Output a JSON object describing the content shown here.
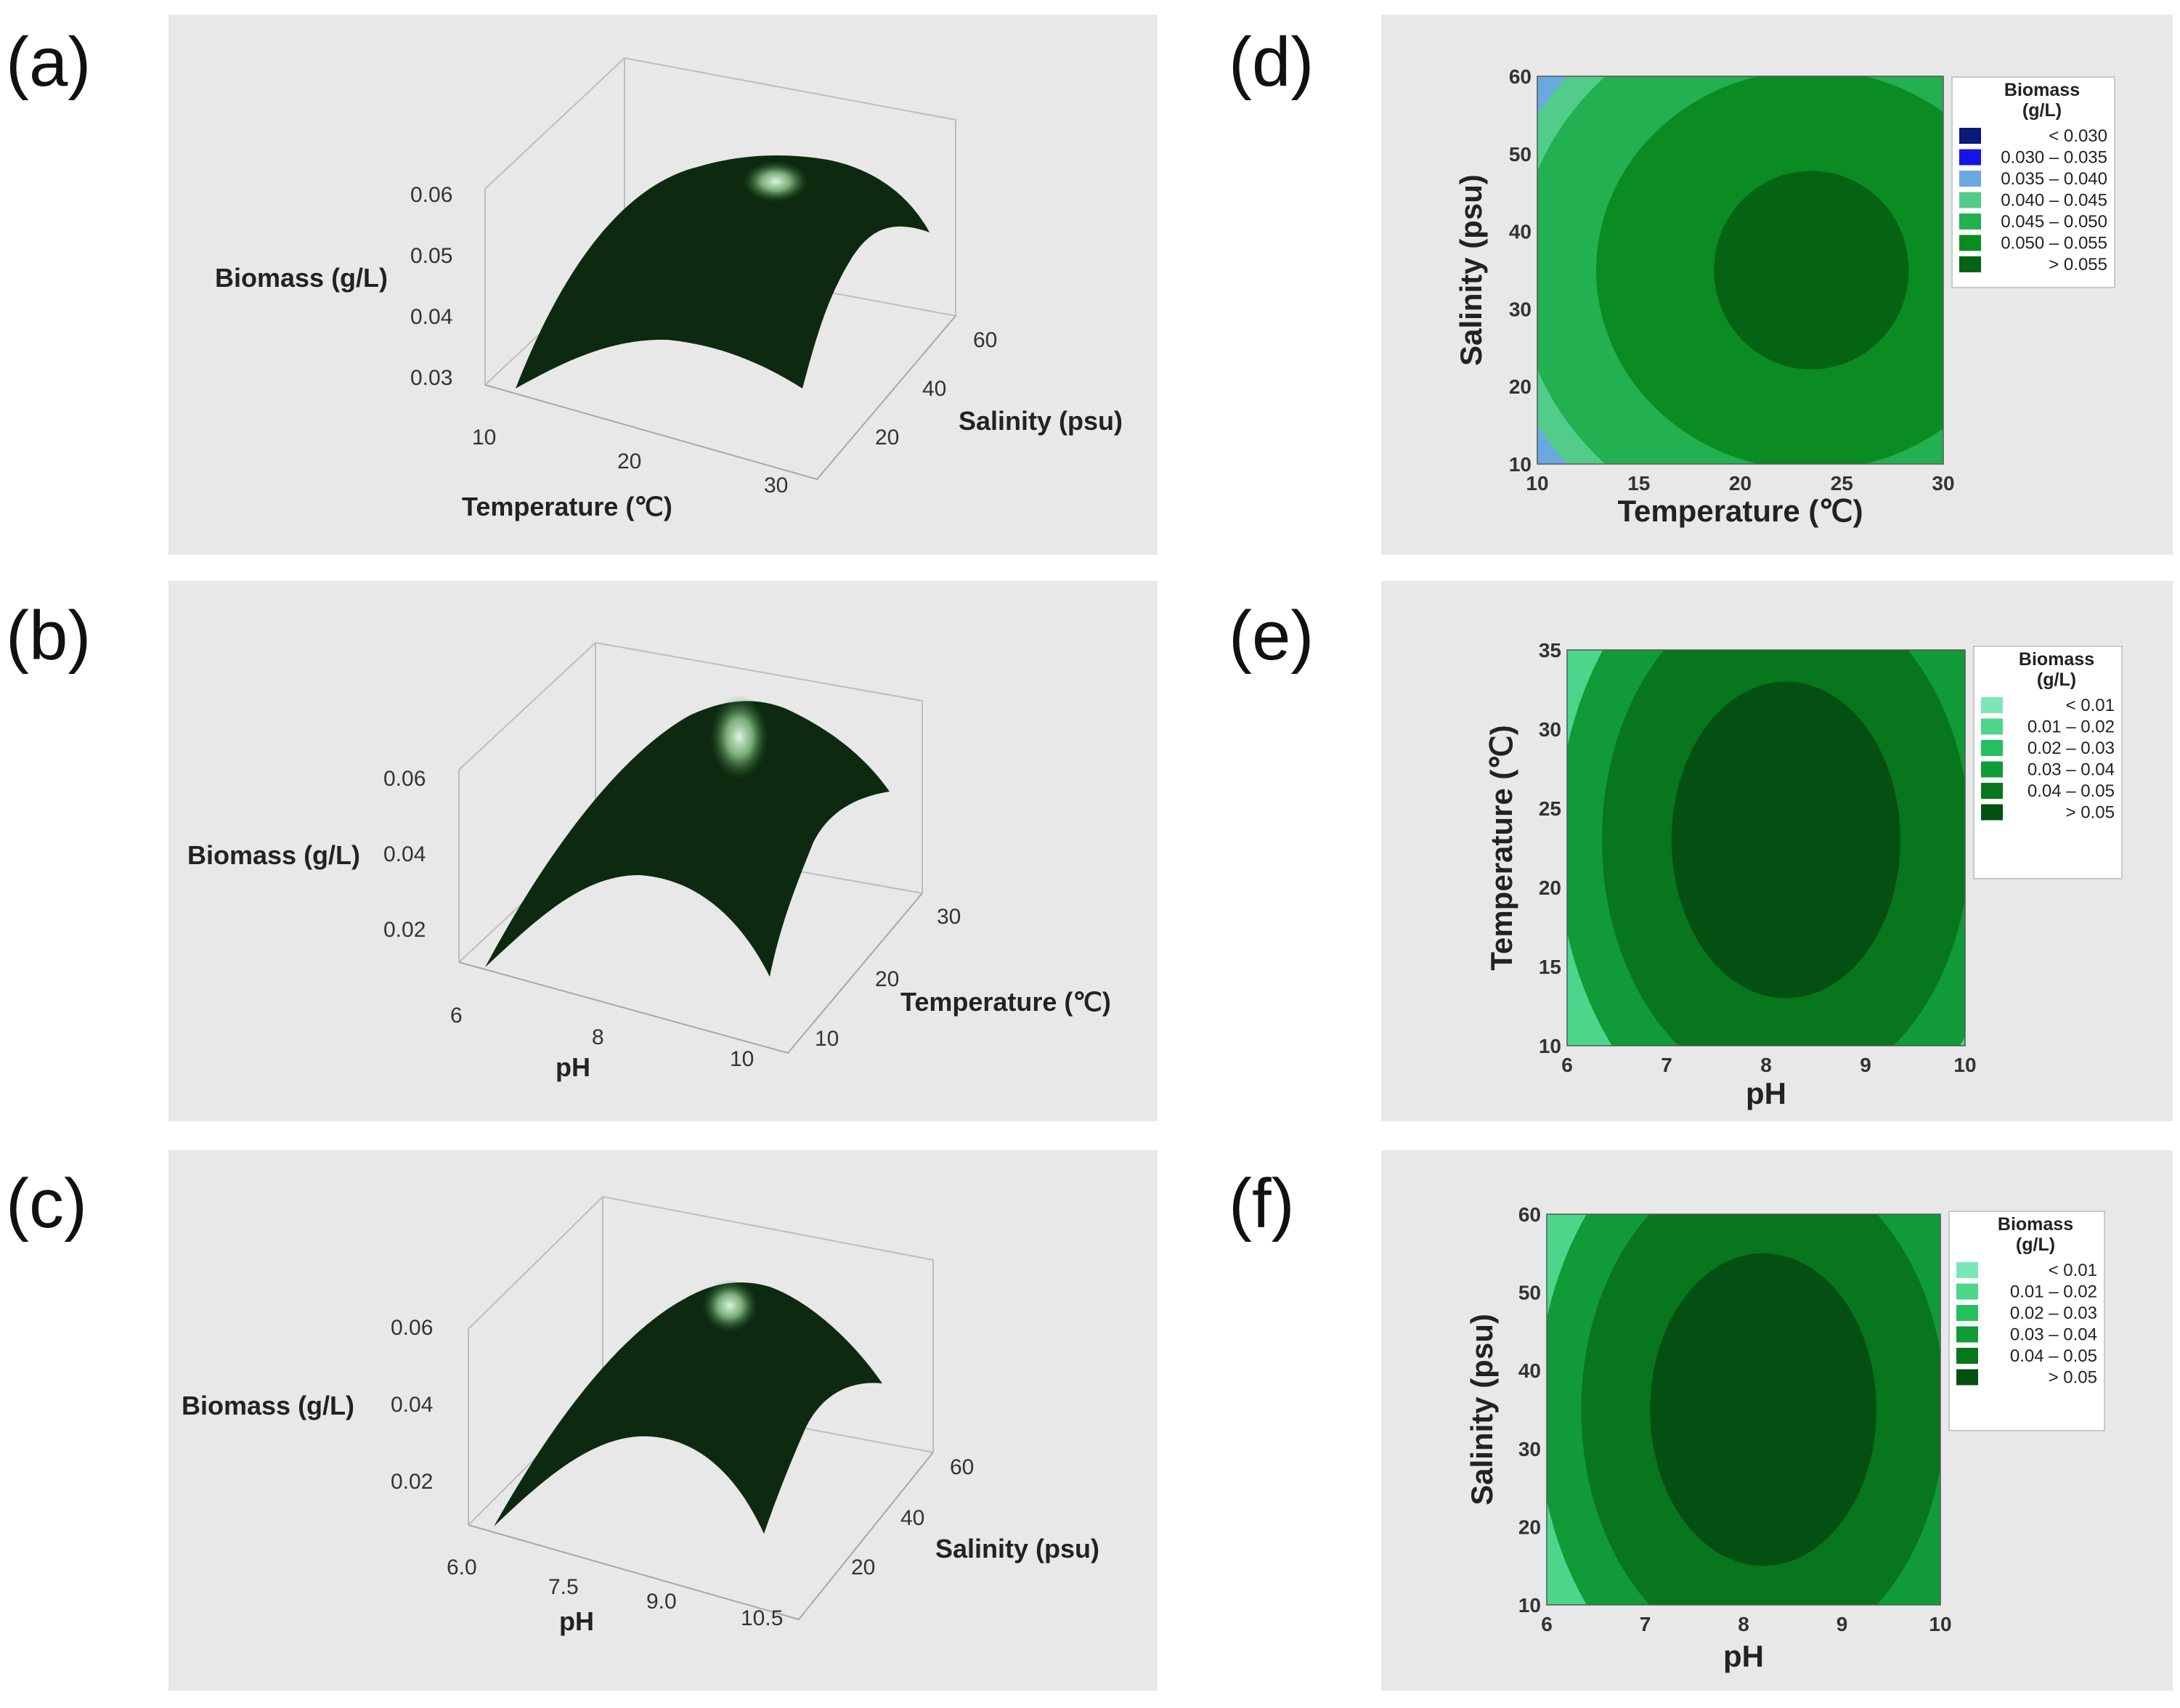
{
  "colors": {
    "panel_bg": "#e8e8e8",
    "surface_dark": "#0d2a10",
    "surface_highlight": "#dff5df"
  },
  "chart_data": [
    {
      "id": "a",
      "type": "surface3d",
      "panel_label": "(a)",
      "zlabel": "Biomass (g/L)",
      "xlabel": "Temperature (℃)",
      "ylabel": "Salinity (psu)",
      "x_ticks": [
        "10",
        "20",
        "30"
      ],
      "y_ticks": [
        "20",
        "40",
        "60"
      ],
      "z_ticks": [
        "0.03",
        "0.04",
        "0.05",
        "0.06"
      ],
      "xlim": [
        10,
        30
      ],
      "ylim": [
        10,
        60
      ],
      "zlim": [
        0.028,
        0.062
      ],
      "optimum": {
        "x": 23,
        "y": 35,
        "z": 0.057
      },
      "corner_min_z": 0.028
    },
    {
      "id": "b",
      "type": "surface3d",
      "panel_label": "(b)",
      "zlabel": "Biomass (g/L)",
      "xlabel": "pH",
      "ylabel": "Temperature (℃)",
      "x_ticks": [
        "6",
        "8",
        "10"
      ],
      "y_ticks": [
        "10",
        "20",
        "30"
      ],
      "z_ticks": [
        "0.02",
        "0.04",
        "0.06"
      ],
      "xlim": [
        6,
        10
      ],
      "ylim": [
        10,
        35
      ],
      "zlim": [
        0.01,
        0.065
      ],
      "optimum": {
        "x": 8.2,
        "y": 23,
        "z": 0.058
      },
      "corner_min_z": 0.01
    },
    {
      "id": "c",
      "type": "surface3d",
      "panel_label": "(c)",
      "zlabel": "Biomass (g/L)",
      "xlabel": "pH",
      "ylabel": "Salinity (psu)",
      "x_ticks": [
        "6.0",
        "7.5",
        "9.0",
        "10.5"
      ],
      "y_ticks": [
        "20",
        "40",
        "60"
      ],
      "z_ticks": [
        "0.02",
        "0.04",
        "0.06"
      ],
      "xlim": [
        6,
        10.5
      ],
      "ylim": [
        10,
        60
      ],
      "zlim": [
        0.01,
        0.065
      ],
      "optimum": {
        "x": 8.2,
        "y": 35,
        "z": 0.058
      },
      "corner_min_z": 0.01
    },
    {
      "id": "d",
      "type": "contour",
      "panel_label": "(d)",
      "xlabel": "Temperature (℃)",
      "ylabel": "Salinity (psu)",
      "xlim": [
        10,
        30
      ],
      "ylim": [
        10,
        60
      ],
      "x_ticks": [
        "10",
        "15",
        "20",
        "25",
        "30"
      ],
      "y_ticks": [
        "10",
        "20",
        "30",
        "40",
        "50",
        "60"
      ],
      "center": {
        "x": 23.5,
        "y": 35
      },
      "contour_radii": {
        "x": [
          4.8,
          10.6,
          14.5,
          15.8,
          21
        ],
        "y": [
          12.8,
          25.8,
          35,
          38.5,
          51
        ]
      },
      "legend": {
        "title_line1": "Biomass",
        "title_line2": "(g/L)",
        "labels": [
          "< 0.030",
          "0.030  –  0.035",
          "0.035  –  0.040",
          "0.040  –  0.045",
          "0.045  –  0.050",
          "0.050  –  0.055",
          "> 0.055"
        ],
        "colors": [
          "#0a1a7a",
          "#1414e6",
          "#6aa8e0",
          "#52cc8a",
          "#22b050",
          "#0a8c22",
          "#056414"
        ]
      }
    },
    {
      "id": "e",
      "type": "contour",
      "panel_label": "(e)",
      "xlabel": "pH",
      "ylabel": "Temperature (℃)",
      "xlim": [
        6,
        10
      ],
      "ylim": [
        10,
        35
      ],
      "x_ticks": [
        "6",
        "7",
        "8",
        "9",
        "10"
      ],
      "y_ticks": [
        "10",
        "15",
        "20",
        "25",
        "30",
        "35"
      ],
      "center": {
        "x": 8.2,
        "y": 23
      },
      "contour_radii": {
        "x": [
          1.15,
          1.85,
          2.3
        ],
        "y": [
          10,
          16,
          20
        ]
      },
      "legend": {
        "title_line1": "Biomass",
        "title_line2": "(g/L)",
        "labels": [
          "< 0.01",
          "0.01  –  0.02",
          "0.02  –  0.03",
          "0.03  –  0.04",
          "0.04  –  0.05",
          "> 0.05"
        ],
        "colors": [
          "#7de6b8",
          "#4cd68c",
          "#24c060",
          "#109a38",
          "#08761c",
          "#045012"
        ]
      }
    },
    {
      "id": "f",
      "type": "contour",
      "panel_label": "(f)",
      "xlabel": "pH",
      "ylabel": "Salinity (psu)",
      "xlim": [
        6,
        10
      ],
      "ylim": [
        10,
        60
      ],
      "x_ticks": [
        "6",
        "7",
        "8",
        "9",
        "10"
      ],
      "y_ticks": [
        "10",
        "20",
        "30",
        "40",
        "50",
        "60"
      ],
      "center": {
        "x": 8.2,
        "y": 35
      },
      "contour_radii": {
        "x": [
          1.15,
          1.85,
          2.3
        ],
        "y": [
          20,
          32,
          40
        ]
      },
      "legend": {
        "title_line1": "Biomass",
        "title_line2": "(g/L)",
        "labels": [
          "< 0.01",
          "0.01  –  0.02",
          "0.02  –  0.03",
          "0.03  –  0.04",
          "0.04  –  0.05",
          "> 0.05"
        ],
        "colors": [
          "#7de6b8",
          "#4cd68c",
          "#24c060",
          "#109a38",
          "#08761c",
          "#045012"
        ]
      }
    }
  ]
}
